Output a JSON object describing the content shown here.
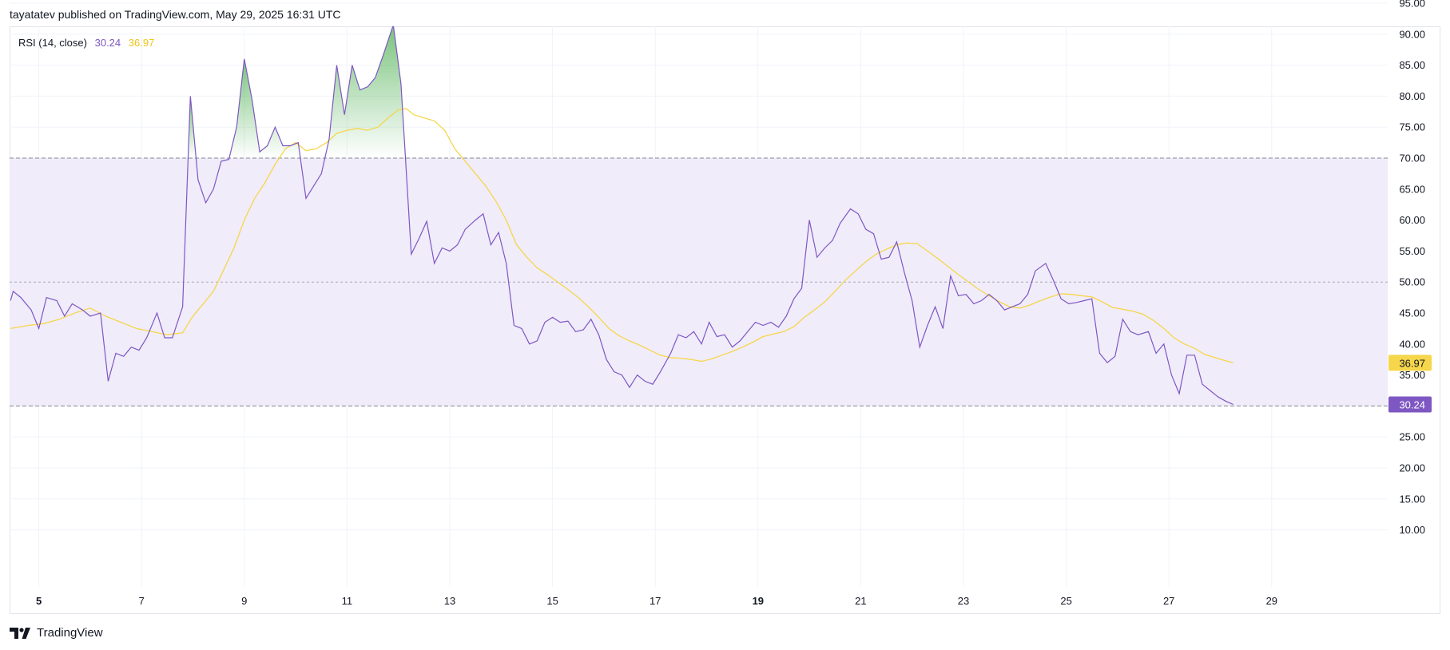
{
  "publisher_line": "tayatatev published on TradingView.com, May 29, 2025 16:31 UTC",
  "brand": {
    "name": "TradingView",
    "logo_icon": "tradingview-logo-icon"
  },
  "legend": {
    "indicator": "RSI (14, close)",
    "rsi_value": "30.24",
    "ma_value": "36.97"
  },
  "colors": {
    "rsi": "#7e57c2",
    "ma": "#f6d64a",
    "band_fill": "#f0ecfa",
    "overbought_fill": "#4caf50",
    "grid": "#f0f3fa",
    "band_line": "#787b86",
    "label_rsi_bg": "#7e57c2",
    "label_ma_bg": "#f6d64a"
  },
  "chart_data": {
    "type": "line",
    "title": "",
    "ylim": [
      5,
      95
    ],
    "y_ticks": [
      "10.00",
      "15.00",
      "20.00",
      "25.00",
      "35.00",
      "40.00",
      "45.00",
      "50.00",
      "55.00",
      "60.00",
      "65.00",
      "70.00",
      "75.00",
      "80.00",
      "85.00",
      "90.00",
      "95.00"
    ],
    "x_ticks": [
      {
        "label": "5",
        "day": 5,
        "bold": true
      },
      {
        "label": "7",
        "day": 7,
        "bold": false
      },
      {
        "label": "9",
        "day": 9,
        "bold": false
      },
      {
        "label": "11",
        "day": 11,
        "bold": false
      },
      {
        "label": "13",
        "day": 13,
        "bold": false
      },
      {
        "label": "15",
        "day": 15,
        "bold": false
      },
      {
        "label": "17",
        "day": 17,
        "bold": false
      },
      {
        "label": "19",
        "day": 19,
        "bold": true
      },
      {
        "label": "21",
        "day": 21,
        "bold": false
      },
      {
        "label": "23",
        "day": 23,
        "bold": false
      },
      {
        "label": "25",
        "day": 25,
        "bold": false
      },
      {
        "label": "27",
        "day": 27,
        "bold": false
      },
      {
        "label": "29",
        "day": 29,
        "bold": false
      }
    ],
    "bands": {
      "upper": 70,
      "middle": 50,
      "lower": 30
    },
    "grid": true,
    "last_value_labels": [
      {
        "series": "RSI",
        "text": "30.24",
        "value": 30.24
      },
      {
        "series": "MA",
        "text": "36.97",
        "value": 36.97
      }
    ],
    "series": [
      {
        "key": "rsi",
        "points": [
          [
            4.45,
            47
          ],
          [
            4.5,
            48.5
          ],
          [
            4.65,
            47.5
          ],
          [
            4.85,
            45.5
          ],
          [
            5,
            42.5
          ],
          [
            5.15,
            47.5
          ],
          [
            5.35,
            47
          ],
          [
            5.5,
            44.5
          ],
          [
            5.65,
            46.5
          ],
          [
            5.85,
            45.5
          ],
          [
            6,
            44.5
          ],
          [
            6.2,
            45
          ],
          [
            6.35,
            34
          ],
          [
            6.5,
            38.5
          ],
          [
            6.65,
            38
          ],
          [
            6.8,
            39.5
          ],
          [
            6.95,
            39
          ],
          [
            7.1,
            41
          ],
          [
            7.3,
            45
          ],
          [
            7.45,
            41
          ],
          [
            7.6,
            41
          ],
          [
            7.8,
            46
          ],
          [
            7.95,
            80
          ],
          [
            8.1,
            66.5
          ],
          [
            8.25,
            62.8
          ],
          [
            8.4,
            65
          ],
          [
            8.55,
            69.5
          ],
          [
            8.7,
            69.8
          ],
          [
            8.85,
            75
          ],
          [
            9,
            86
          ],
          [
            9.15,
            79.5
          ],
          [
            9.3,
            71
          ],
          [
            9.45,
            72
          ],
          [
            9.6,
            75
          ],
          [
            9.75,
            72
          ],
          [
            9.9,
            72
          ],
          [
            10.05,
            72.5
          ],
          [
            10.2,
            63.5
          ],
          [
            10.35,
            65.5
          ],
          [
            10.5,
            67.5
          ],
          [
            10.65,
            73
          ],
          [
            10.8,
            85
          ],
          [
            10.95,
            77
          ],
          [
            11.1,
            85
          ],
          [
            11.25,
            81
          ],
          [
            11.4,
            81.5
          ],
          [
            11.55,
            83
          ],
          [
            11.7,
            86.5
          ],
          [
            11.9,
            91.5
          ],
          [
            12.05,
            82
          ],
          [
            12.25,
            54.5
          ],
          [
            12.4,
            57
          ],
          [
            12.55,
            59.8
          ],
          [
            12.7,
            53
          ],
          [
            12.85,
            55.5
          ],
          [
            13,
            55
          ],
          [
            13.15,
            56
          ],
          [
            13.3,
            58.5
          ],
          [
            13.5,
            60
          ],
          [
            13.65,
            61
          ],
          [
            13.8,
            56
          ],
          [
            13.95,
            58
          ],
          [
            14.1,
            53
          ],
          [
            14.25,
            43
          ],
          [
            14.4,
            42.5
          ],
          [
            14.55,
            40
          ],
          [
            14.7,
            40.5
          ],
          [
            14.85,
            43.5
          ],
          [
            15,
            44.3
          ],
          [
            15.15,
            43.5
          ],
          [
            15.3,
            43.7
          ],
          [
            15.45,
            42
          ],
          [
            15.6,
            42.3
          ],
          [
            15.75,
            44
          ],
          [
            15.9,
            41.5
          ],
          [
            16.05,
            37.5
          ],
          [
            16.2,
            35.5
          ],
          [
            16.35,
            35
          ],
          [
            16.5,
            33
          ],
          [
            16.65,
            35
          ],
          [
            16.8,
            34
          ],
          [
            16.95,
            33.5
          ],
          [
            17.1,
            35.5
          ],
          [
            17.3,
            38.5
          ],
          [
            17.45,
            41.5
          ],
          [
            17.6,
            41
          ],
          [
            17.75,
            42
          ],
          [
            17.9,
            40
          ],
          [
            18.05,
            43.5
          ],
          [
            18.2,
            41.2
          ],
          [
            18.35,
            41.5
          ],
          [
            18.5,
            39.5
          ],
          [
            18.65,
            40.5
          ],
          [
            18.8,
            42
          ],
          [
            18.95,
            43.5
          ],
          [
            19.1,
            43
          ],
          [
            19.25,
            43.5
          ],
          [
            19.4,
            42.7
          ],
          [
            19.55,
            44.5
          ],
          [
            19.7,
            47.3
          ],
          [
            19.85,
            49
          ],
          [
            20,
            60
          ],
          [
            20.15,
            54
          ],
          [
            20.3,
            55.5
          ],
          [
            20.45,
            56.7
          ],
          [
            20.6,
            59.5
          ],
          [
            20.8,
            61.8
          ],
          [
            20.95,
            61
          ],
          [
            21.1,
            58.5
          ],
          [
            21.25,
            57.8
          ],
          [
            21.4,
            53.7
          ],
          [
            21.55,
            54
          ],
          [
            21.7,
            56.5
          ],
          [
            21.85,
            51.5
          ],
          [
            22,
            47
          ],
          [
            22.15,
            39.5
          ],
          [
            22.3,
            43
          ],
          [
            22.45,
            46
          ],
          [
            22.6,
            42.5
          ],
          [
            22.75,
            51
          ],
          [
            22.9,
            47.8
          ],
          [
            23.05,
            48
          ],
          [
            23.2,
            46.5
          ],
          [
            23.35,
            47
          ],
          [
            23.5,
            48
          ],
          [
            23.65,
            47
          ],
          [
            23.8,
            45.5
          ],
          [
            23.95,
            46
          ],
          [
            24.1,
            46.5
          ],
          [
            24.25,
            48
          ],
          [
            24.4,
            51.8
          ],
          [
            24.6,
            53
          ],
          [
            24.75,
            50.3
          ],
          [
            24.9,
            47.3
          ],
          [
            25.05,
            46.5
          ],
          [
            25.2,
            46.7
          ],
          [
            25.35,
            47
          ],
          [
            25.5,
            47.3
          ],
          [
            25.65,
            38.5
          ],
          [
            25.8,
            37
          ],
          [
            25.95,
            38
          ],
          [
            26.1,
            44
          ],
          [
            26.25,
            42
          ],
          [
            26.4,
            41.5
          ],
          [
            26.6,
            42
          ],
          [
            26.75,
            38.5
          ],
          [
            26.9,
            40
          ],
          [
            27.05,
            35
          ],
          [
            27.2,
            32
          ],
          [
            27.35,
            38.2
          ],
          [
            27.5,
            38.2
          ],
          [
            27.65,
            33.5
          ],
          [
            27.8,
            32.5
          ],
          [
            27.95,
            31.5
          ],
          [
            28.1,
            30.8
          ],
          [
            28.25,
            30.24
          ]
        ]
      },
      {
        "key": "ma",
        "points": [
          [
            4.45,
            42.5
          ],
          [
            4.8,
            43
          ],
          [
            5.1,
            43.3
          ],
          [
            5.4,
            44
          ],
          [
            5.7,
            45
          ],
          [
            6,
            45.8
          ],
          [
            6.3,
            44.5
          ],
          [
            6.6,
            43.5
          ],
          [
            6.9,
            42.5
          ],
          [
            7.2,
            42
          ],
          [
            7.5,
            41.5
          ],
          [
            7.8,
            41.8
          ],
          [
            8,
            44.5
          ],
          [
            8.2,
            46.5
          ],
          [
            8.4,
            48.5
          ],
          [
            8.6,
            52
          ],
          [
            8.8,
            55.5
          ],
          [
            9,
            60
          ],
          [
            9.2,
            63.5
          ],
          [
            9.4,
            66
          ],
          [
            9.6,
            69
          ],
          [
            9.8,
            71.5
          ],
          [
            10,
            72.5
          ],
          [
            10.2,
            71.2
          ],
          [
            10.4,
            71.5
          ],
          [
            10.6,
            72.5
          ],
          [
            10.8,
            74
          ],
          [
            11,
            74.5
          ],
          [
            11.2,
            74.8
          ],
          [
            11.4,
            74.5
          ],
          [
            11.6,
            75
          ],
          [
            11.8,
            76.5
          ],
          [
            12,
            77.8
          ],
          [
            12.15,
            78
          ],
          [
            12.3,
            77
          ],
          [
            12.5,
            76.5
          ],
          [
            12.7,
            76
          ],
          [
            12.9,
            74.5
          ],
          [
            13.1,
            71.5
          ],
          [
            13.3,
            69.5
          ],
          [
            13.5,
            67.5
          ],
          [
            13.7,
            65.5
          ],
          [
            13.9,
            63
          ],
          [
            14.1,
            60
          ],
          [
            14.3,
            56
          ],
          [
            14.5,
            54
          ],
          [
            14.7,
            52.3
          ],
          [
            14.9,
            51.2
          ],
          [
            15.1,
            50
          ],
          [
            15.3,
            48.8
          ],
          [
            15.5,
            47.5
          ],
          [
            15.7,
            46
          ],
          [
            15.9,
            44.3
          ],
          [
            16.1,
            42.5
          ],
          [
            16.3,
            41.3
          ],
          [
            16.5,
            40.5
          ],
          [
            16.7,
            39.8
          ],
          [
            16.9,
            39
          ],
          [
            17.1,
            38.2
          ],
          [
            17.3,
            37.8
          ],
          [
            17.5,
            37.7
          ],
          [
            17.7,
            37.5
          ],
          [
            17.9,
            37.2
          ],
          [
            18.1,
            37.6
          ],
          [
            18.3,
            38.2
          ],
          [
            18.5,
            38.8
          ],
          [
            18.7,
            39.5
          ],
          [
            18.9,
            40.3
          ],
          [
            19.1,
            41.2
          ],
          [
            19.3,
            41.6
          ],
          [
            19.5,
            42
          ],
          [
            19.7,
            42.8
          ],
          [
            19.9,
            44.3
          ],
          [
            20.1,
            45.5
          ],
          [
            20.3,
            46.8
          ],
          [
            20.5,
            48.5
          ],
          [
            20.7,
            50.3
          ],
          [
            20.9,
            51.8
          ],
          [
            21.1,
            53.3
          ],
          [
            21.3,
            54.5
          ],
          [
            21.5,
            55.3
          ],
          [
            21.7,
            56
          ],
          [
            21.9,
            56.3
          ],
          [
            22.1,
            56.2
          ],
          [
            22.3,
            55
          ],
          [
            22.5,
            53.8
          ],
          [
            22.7,
            52.5
          ],
          [
            22.9,
            51.2
          ],
          [
            23.1,
            50
          ],
          [
            23.3,
            48.8
          ],
          [
            23.5,
            47.8
          ],
          [
            23.7,
            46.8
          ],
          [
            23.9,
            46
          ],
          [
            24.1,
            45.8
          ],
          [
            24.3,
            46.3
          ],
          [
            24.5,
            47
          ],
          [
            24.7,
            47.6
          ],
          [
            24.9,
            48.1
          ],
          [
            25.1,
            48
          ],
          [
            25.3,
            47.8
          ],
          [
            25.5,
            47.6
          ],
          [
            25.7,
            46.8
          ],
          [
            25.9,
            45.9
          ],
          [
            26.1,
            45.6
          ],
          [
            26.3,
            45.3
          ],
          [
            26.5,
            44.8
          ],
          [
            26.7,
            43.8
          ],
          [
            26.9,
            42.5
          ],
          [
            27.1,
            41
          ],
          [
            27.3,
            40
          ],
          [
            27.5,
            39.3
          ],
          [
            27.7,
            38.3
          ],
          [
            27.9,
            37.8
          ],
          [
            28.1,
            37.3
          ],
          [
            28.25,
            36.97
          ]
        ]
      }
    ]
  }
}
